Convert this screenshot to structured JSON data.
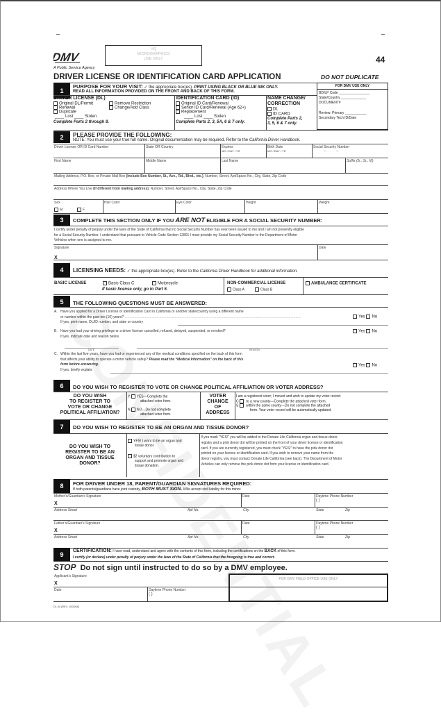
{
  "header": {
    "agency": "A Public Service Agency",
    "hq_box": [
      "HQ",
      "MICROGRAPHICS",
      "USE ONLY"
    ],
    "form_number": "44",
    "title": "DRIVER LICENSE OR IDENTIFICATION CARD APPLICATION",
    "do_not_duplicate": "DO NOT DUPLICATE",
    "logo": "DMV",
    "watermark": "CONFIDENTIAL"
  },
  "s1": {
    "num": "1",
    "title": "PURPOSE FOR YOUR VISIT:",
    "check_note": "✓ the appropriate box(es).",
    "ink": "PRINT USING BLACK OR BLUE INK ONLY.",
    "read": "READ ALL INFORMATION PROVIDED ON THE FRONT AND BACK OF THIS FORM.",
    "dl": {
      "title": "DRIVER LICENSE (DL)",
      "items": [
        "Original DL/Permit",
        "Renewal",
        "Duplicate",
        "Remove Restriction",
        "Change/Add Class"
      ],
      "lost": "Lost",
      "stolen": "Stolen",
      "complete": "Complete Parts 2 through 8."
    },
    "id": {
      "title": "IDENTIFICATION CARD (ID)",
      "items": [
        "Original ID Card/Renewal",
        "Senior ID Card/Renewal (Age 62+)",
        "Replacement"
      ],
      "lost": "Lost",
      "stolen": "Stolen",
      "complete": "Complete Parts 2, 3, 5A, 6 & 7 only."
    },
    "nc": {
      "title1": "NAME CHANGE/",
      "title2": "CORRECTION",
      "items": [
        "DL",
        "ID CARD"
      ],
      "complete1": "Complete Parts 2,",
      "complete2": "3, 5, 6 & 7 only."
    },
    "dmv": {
      "title": "FOR DMV USE ONLY",
      "fields": [
        "BD/LP Code",
        "State/Country",
        "DOCUMENT#",
        "Review: Primary",
        "Secondary Tech ID/Date"
      ]
    }
  },
  "s2": {
    "num": "2",
    "title": "PLEASE PROVIDE THE FOLLOWING:",
    "note": "NOTE: You must use your true full name. Original documentation may be required. Refer to the",
    "handbook": "California Driver Handbook.",
    "row1": [
      "Driver License OR ID Card Number",
      "State OR Country",
      "Expires",
      "Birth Date",
      "Social Security Number"
    ],
    "date_parts": [
      "MO",
      "DAY",
      "YR"
    ],
    "row2": [
      "First Name",
      "Middle Name",
      "Last Name",
      "Suffix (Jr., Sr., III)"
    ],
    "mailing": "Mailing Address, P.O. Box, or Private Mail Box",
    "mailing_bold": "(Include Box Number, St., Ave., Rd., Blvd., etc.)",
    "mailing_rest": ", Number, Street, Apt/Space No., City, State, Zip Code",
    "live": "Address Where You Live",
    "live_bold": "(If different from mailing address)",
    "live_rest": ", Number, Street, Apt/Space No., City, State, Zip Code",
    "row5": [
      "Sex",
      "Hair Color",
      "Eye Color",
      "Height",
      "Weight"
    ],
    "sex": [
      "M",
      "F"
    ]
  },
  "s3": {
    "num": "3",
    "title_a": "COMPLETE THIS SECTION ONLY IF YOU",
    "title_b": "ARE NOT",
    "title_c": "ELIGIBLE FOR A SOCIAL SECURITY NUMBER:",
    "text": [
      "I certify under penalty of perjury under the laws of the State of California that no Social Security Number has ever been issued to me and I am not presently eligible",
      "for a Social Security Number. I understand that pursuant to Vehicle Code Section 12801 I must provide my Social Security Number to the Department of Motor",
      "Vehicles when one is assigned to me."
    ],
    "signature": "Signature",
    "x": "X",
    "date": "Date"
  },
  "s4": {
    "num": "4",
    "title": "LICENSING NEEDS:",
    "note": "✓ the appropriate box(es). Refer to the",
    "italic": "California Driver Handbook for additional information.",
    "basic": "BASIC LICENSE",
    "basic_items": [
      "Basic Class C",
      "Motorcycle"
    ],
    "basic_note": "If basic license only, go to Part 5.",
    "noncom": "NON-COMMERCIAL LICENSE",
    "noncom_items": [
      "Class A",
      "Class B"
    ],
    "ambulance": "AMBULANCE CERTIFICATE"
  },
  "s5": {
    "num": "5",
    "title": "THE FOLLOWING QUESTIONS MUST BE ANSWERED:",
    "yes": "Yes",
    "no": "No",
    "a": [
      "A.",
      "Have you applied for a Driver License or Identification Card in California or another state/country using a different name",
      "or number within the past ten (10) years?",
      "If yes, print name, DL/ID number, and state or country"
    ],
    "b": [
      "B.",
      "Have you had your driving privilege or a driver license cancelled, refused, delayed, suspended, or revoked?",
      "If yes, indicate date and reason below."
    ],
    "date": "DATE",
    "reason": "REASON",
    "c": [
      "C.",
      "Within the last five years, have you had or experienced any of the medical conditions specified on the back of this form",
      "that affects your ability to operate a motor vehicle safely?",
      "Please read the “Medical Information” on the back of this",
      "form before answering.",
      "If yes, briefly explain:"
    ]
  },
  "s6": {
    "num": "6",
    "title": "DO YOU WISH TO REGISTER TO VOTE OR CHANGE POLITICAL AFFILIATION OR VOTER ADDRESS?",
    "q": [
      "DO YOU WISH",
      "TO REGISTER TO",
      "VOTE OR CHANGE",
      "POLITICAL AFFILIATION?"
    ],
    "y": "Y",
    "yes": [
      "YES—Complete the",
      "attached voter form."
    ],
    "n": "N",
    "no": [
      "NO—Do not complete",
      "attached voter form."
    ],
    "vca": [
      "VOTER",
      "CHANGE",
      "OF",
      "ADDRESS"
    ],
    "reg": "I am a registered voter; I moved and wish to update my voter record.",
    "c": "C",
    "c_text": "to a new county—Complete the attached voter form.",
    "s": "S",
    "s_text": "within the same county—Do not complete the attached",
    "s_text2": "form. Your voter record will be automatically updated."
  },
  "s7": {
    "num": "7",
    "title": "DO YOU WISH TO REGISTER TO BE AN ORGAN AND TISSUE DONOR?",
    "q": [
      "DO YOU WISH TO",
      "REGISTER TO BE AN",
      "ORGAN AND TISSUE",
      "DONOR?"
    ],
    "opt1": [
      "YES! I want to be an organ and",
      "tissue donor."
    ],
    "opt2": [
      "$2 voluntary contribution to",
      "support and promote organ and",
      "tissue donation."
    ],
    "info": [
      "If you mark “YES!” you will be added to the Donate Life California organ and tissue donor",
      "registry and a pink donor dot will be printed on the front of your driver license or identification",
      "card.  If you are currently registered, you must check “YES!” to have the pink donor dot",
      "printed on your license or identification card. If you wish to remove your name from the",
      "donor registry, you must contact Donate Life California (see back). The Department of Motor",
      "Vehicles can only remove the pink donor dot from your license or identification card."
    ]
  },
  "s8": {
    "num": "8",
    "title": "FOR DRIVER UNDER 18, PARENT/GUARDIAN SIGNATURES REQUIRED:",
    "note": "If both parents/guardians have joint custody,",
    "bold": "BOTH MUST SIGN.",
    "note2": "I/We accept civil liability for this minor.",
    "mother": "Mother’s/Guardian’s Signature",
    "father": "Father’s/Guardian’s Signature",
    "x": "X",
    "date": "Date",
    "phone": "Daytime Phone Number",
    "paren": "(        )",
    "address": "Address",
    "street": "Street",
    "apt": "Apt No.",
    "city": "City",
    "state": "State",
    "zip": "Zip"
  },
  "s9": {
    "num": "9",
    "title": "CERTIFICATION:",
    "text": "I have read, understand and agree with the contents of this form, including the certifications on the",
    "back": "BACK",
    "text2": "of this form.",
    "certify": "I certify (or declare) under penalty of perjury under the laws of the State of California that the foregoing is true and correct.",
    "stop": "STOP",
    "stop_text": "Do not sign until instructed to do so by a DMV employee.",
    "applicant": "Applicant’s Signature",
    "x": "X",
    "date": "Date",
    "phone": "Daytime Phone Number",
    "paren": "(        )",
    "field_office": "FOR DMV FIELD OFFICE USE ONLY"
  },
  "footer": {
    "rev": "DL 44 (REV. 10/2008)"
  }
}
